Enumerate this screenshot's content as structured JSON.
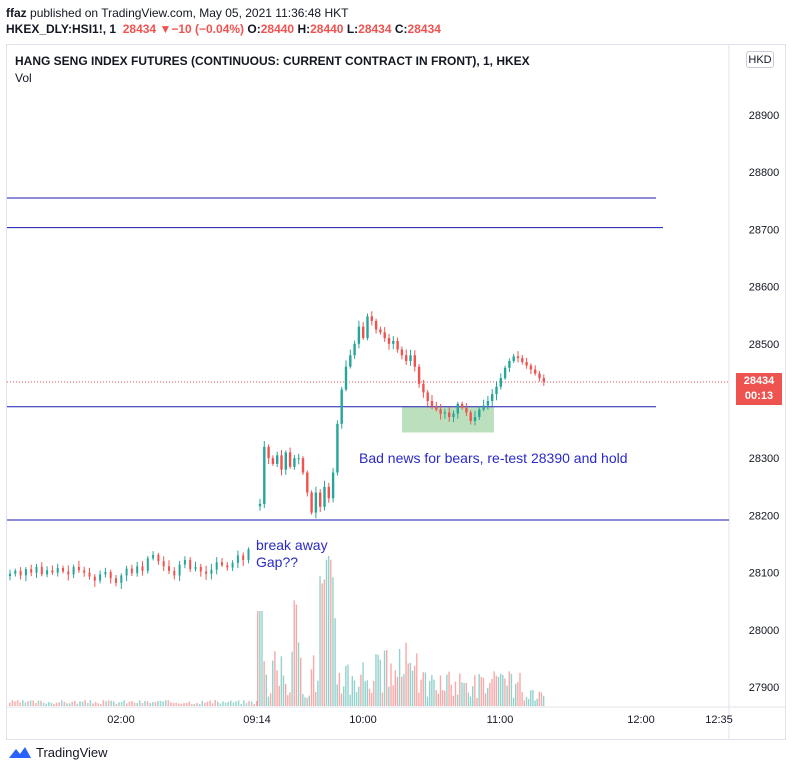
{
  "header": {
    "author": "ffaz",
    "published_text": "published on TradingView.com, May 05, 2021 11:36:48 HKT"
  },
  "ohlc": {
    "symbol": "HKEX_DLY:HSI1!, 1",
    "last": "28434",
    "change": "▼−10 (−0.04%)",
    "o_label": "O:",
    "o": "28440",
    "h_label": "H:",
    "h": "28440",
    "l_label": "L:",
    "l": "28434",
    "c_label": "C:",
    "c": "28434"
  },
  "chart_title": "HANG SENG INDEX FUTURES (CONTINUOUS: CURRENT CONTRACT IN FRONT), 1, HKEX",
  "vol_label": "Vol",
  "currency": "HKD",
  "price_tag": {
    "price": "28434",
    "countdown": "00:13"
  },
  "brand": "TradingView",
  "colors": {
    "up": "#26a69a",
    "down": "#ef5350",
    "level_line": "#1a1ab0",
    "zone": "#a5d6a7",
    "annotation": "#2a2ac8"
  },
  "chart_data": {
    "type": "candlestick",
    "y_ticks": [
      "28900",
      "28800",
      "28700",
      "28600",
      "28500",
      "28400",
      "28300",
      "28200",
      "28100",
      "28000",
      "27900"
    ],
    "y_range": [
      27860,
      29000
    ],
    "x_ticks": [
      {
        "label": "02:00"
      },
      {
        "label": "09:14"
      },
      {
        "label": "10:00"
      },
      {
        "label": "11:00"
      },
      {
        "label": "12:00"
      },
      {
        "label": "12:35"
      }
    ],
    "horizontal_levels": [
      28755,
      28703,
      28390,
      28192
    ],
    "zone": {
      "from_price": 28345,
      "to_price": 28390
    },
    "annotations": [
      {
        "text": "Bad news for bears, re-test 28390 and hold"
      },
      {
        "text": "break away"
      },
      {
        "text": "Gap??"
      }
    ],
    "price_path": {
      "pre_session": [
        28098,
        28103,
        28095,
        28106,
        28100,
        28110,
        28097,
        28104,
        28100,
        28108,
        28102,
        28097,
        28110,
        28104,
        28100,
        28093,
        28086,
        28097,
        28101,
        28090,
        28082,
        28095,
        28107,
        28099,
        28111,
        28103,
        28125,
        28131,
        28120,
        28111,
        28103,
        28095,
        28114,
        28122,
        28106,
        28110,
        28102,
        28098,
        28105,
        28118,
        28113,
        28109,
        28117,
        28130,
        28122,
        28141
      ],
      "session": [
        28220,
        28320,
        28300,
        28290,
        28305,
        28280,
        28310,
        28285,
        28300,
        28300,
        28275,
        28240,
        28205,
        28240,
        28215,
        28250,
        28230,
        28275,
        28360,
        28420,
        28460,
        28480,
        28500,
        28530,
        28510,
        28548,
        28540,
        28525,
        28520,
        28510,
        28500,
        28505,
        28490,
        28480,
        28470,
        28480,
        28460,
        28430,
        28415,
        28400,
        28390,
        28385,
        28378,
        28380,
        28372,
        28378,
        28395,
        28388,
        28380,
        28365,
        28372,
        28385,
        28392,
        28400,
        28412,
        28425,
        28440,
        28458,
        28470,
        28478,
        28475,
        28468,
        28462,
        28455,
        28448,
        28440,
        28434
      ]
    }
  }
}
